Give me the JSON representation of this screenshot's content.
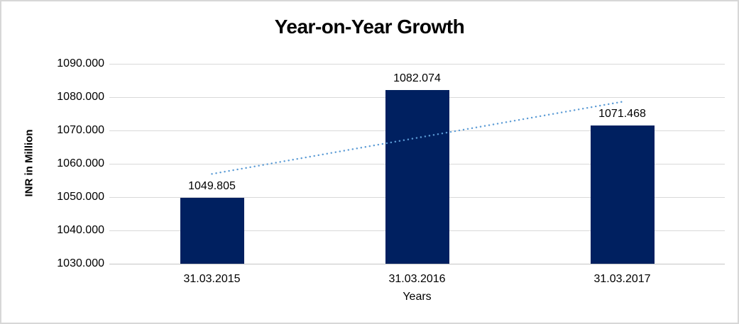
{
  "chart_data": {
    "type": "bar",
    "title": "Year-on-Year Growth",
    "xlabel": "Years",
    "ylabel": "INR in Million",
    "categories": [
      "31.03.2015",
      "31.03.2016",
      "31.03.2017"
    ],
    "values": [
      1049.805,
      1082.074,
      1071.468
    ],
    "data_labels": [
      "1049.805",
      "1082.074",
      "1071.468"
    ],
    "y_ticks": [
      "1090.000",
      "1080.000",
      "1070.000",
      "1060.000",
      "1050.000",
      "1040.000",
      "1030.000"
    ],
    "ylim": [
      1030,
      1090
    ],
    "grid": true,
    "legend": false,
    "trendline": {
      "kind": "linear",
      "style": "dotted"
    },
    "colors": {
      "bar": "#002060",
      "trendline": "#5b9bd5",
      "gridline": "#d9d9d9",
      "axis_line": "#c6c6c6",
      "text": "#000000",
      "frame_border": "#d7d7d7",
      "background": "#ffffff"
    }
  }
}
